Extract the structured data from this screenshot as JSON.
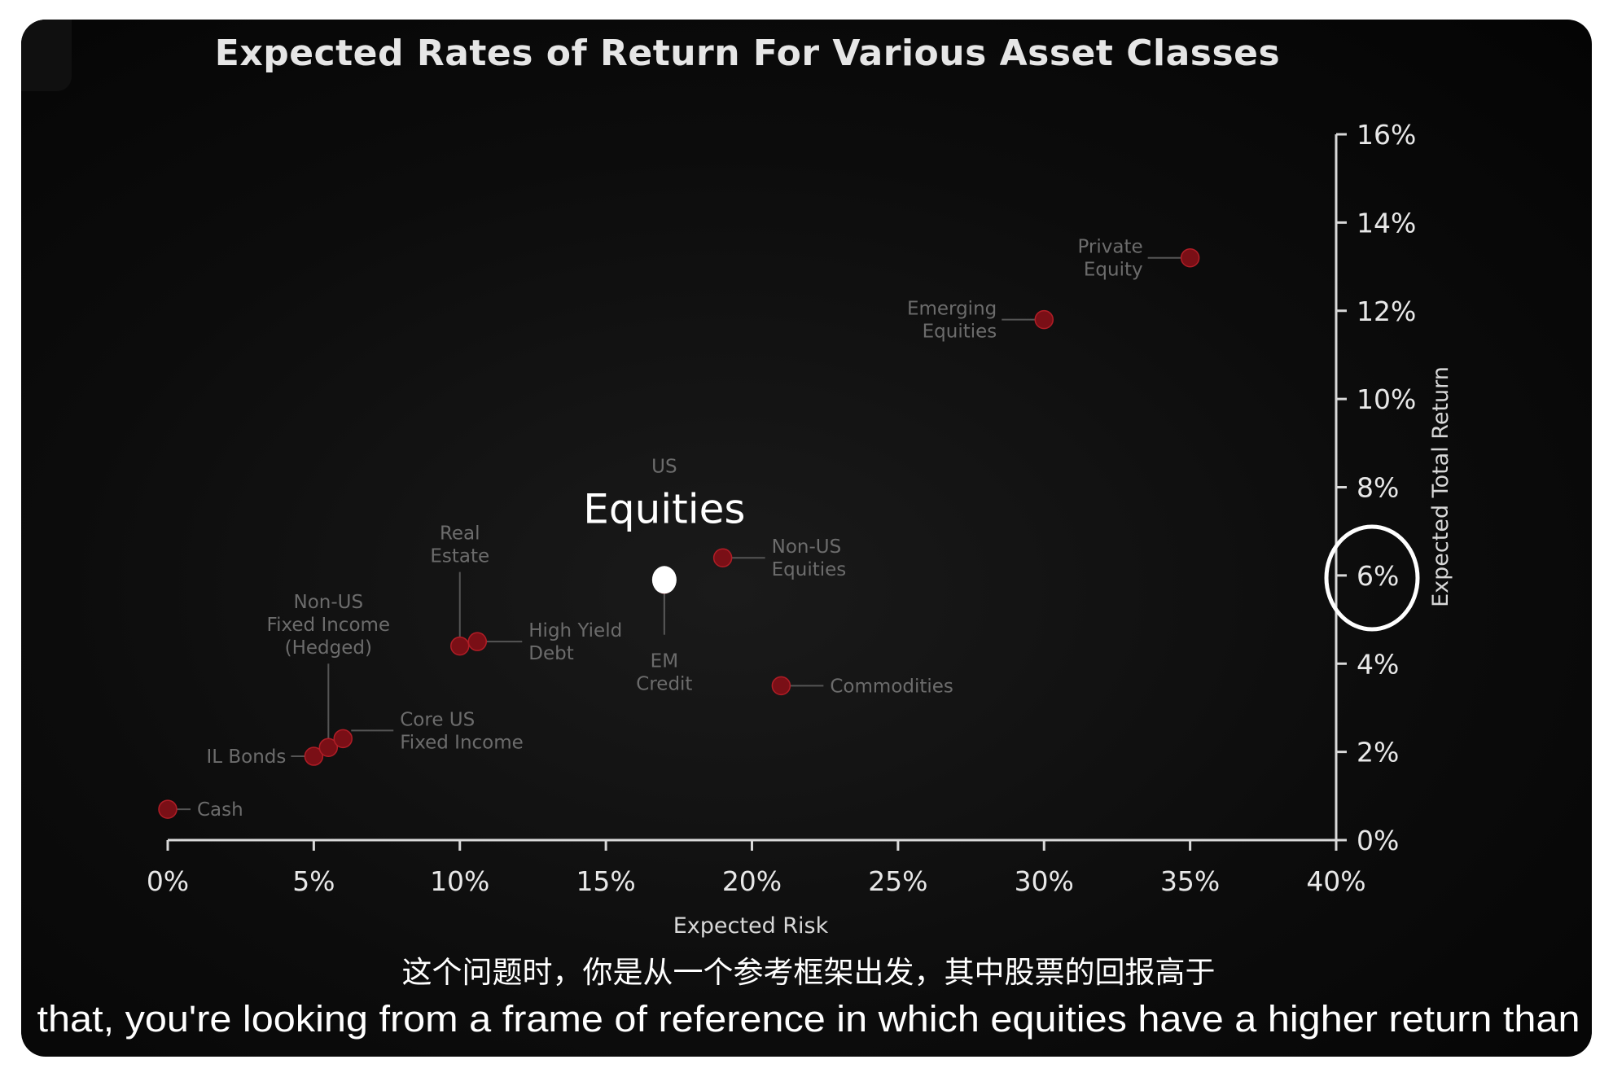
{
  "chart_data": {
    "type": "scatter",
    "title": "Expected Rates of Return For Various Asset Classes",
    "xlabel": "Expected Risk",
    "ylabel": "Expected Total Return",
    "xlim": [
      0,
      40
    ],
    "ylim": [
      0,
      16
    ],
    "x_ticks": [
      "0%",
      "5%",
      "10%",
      "15%",
      "20%",
      "25%",
      "30%",
      "35%",
      "40%"
    ],
    "y_ticks": [
      "0%",
      "2%",
      "4%",
      "6%",
      "8%",
      "10%",
      "12%",
      "14%",
      "16%"
    ],
    "y_axis_position": "right",
    "grid": false,
    "highlighted_tick": "6%",
    "points": [
      {
        "name": "Cash",
        "label_lines": [
          "Cash"
        ],
        "x": 0,
        "y": 0.7
      },
      {
        "name": "IL Bonds",
        "label_lines": [
          "IL Bonds"
        ],
        "x": 5,
        "y": 1.9
      },
      {
        "name": "Non-US Fixed Income (Hedged)",
        "label_lines": [
          "Non-US",
          "Fixed Income",
          "(Hedged)"
        ],
        "x": 5.5,
        "y": 2.1
      },
      {
        "name": "Core US Fixed Income",
        "label_lines": [
          "Core US",
          "Fixed Income"
        ],
        "x": 6,
        "y": 2.3
      },
      {
        "name": "Real Estate",
        "label_lines": [
          "Real",
          "Estate"
        ],
        "x": 10,
        "y": 4.4
      },
      {
        "name": "High Yield Debt",
        "label_lines": [
          "High Yield",
          "Debt"
        ],
        "x": 10.6,
        "y": 4.5
      },
      {
        "name": "EM Credit",
        "label_lines": [
          "EM",
          "Credit"
        ],
        "x": 17,
        "y": 5.8
      },
      {
        "name": "US Equities",
        "label_lines": [
          "US",
          "Equities"
        ],
        "x": 17,
        "y": 5.9,
        "highlighted": true
      },
      {
        "name": "Non-US Equities",
        "label_lines": [
          "Non-US",
          "Equities"
        ],
        "x": 19,
        "y": 6.4
      },
      {
        "name": "Commodities",
        "label_lines": [
          "Commodities"
        ],
        "x": 21,
        "y": 3.5
      },
      {
        "name": "Emerging Equities",
        "label_lines": [
          "Emerging",
          "Equities"
        ],
        "x": 30,
        "y": 11.8
      },
      {
        "name": "Private Equity",
        "label_lines": [
          "Private",
          "Equity"
        ],
        "x": 35,
        "y": 13.2
      }
    ],
    "colors": {
      "point": "#7a0f16",
      "highlight_point": "#ffffff",
      "axis": "#d9d9d9",
      "connector": "#555555"
    }
  },
  "subtitles": {
    "zh": "这个问题时，你是从一个参考框架出发，其中股票的回报高于",
    "en": "that, you're looking from a frame of reference in which equities have a higher return than"
  }
}
